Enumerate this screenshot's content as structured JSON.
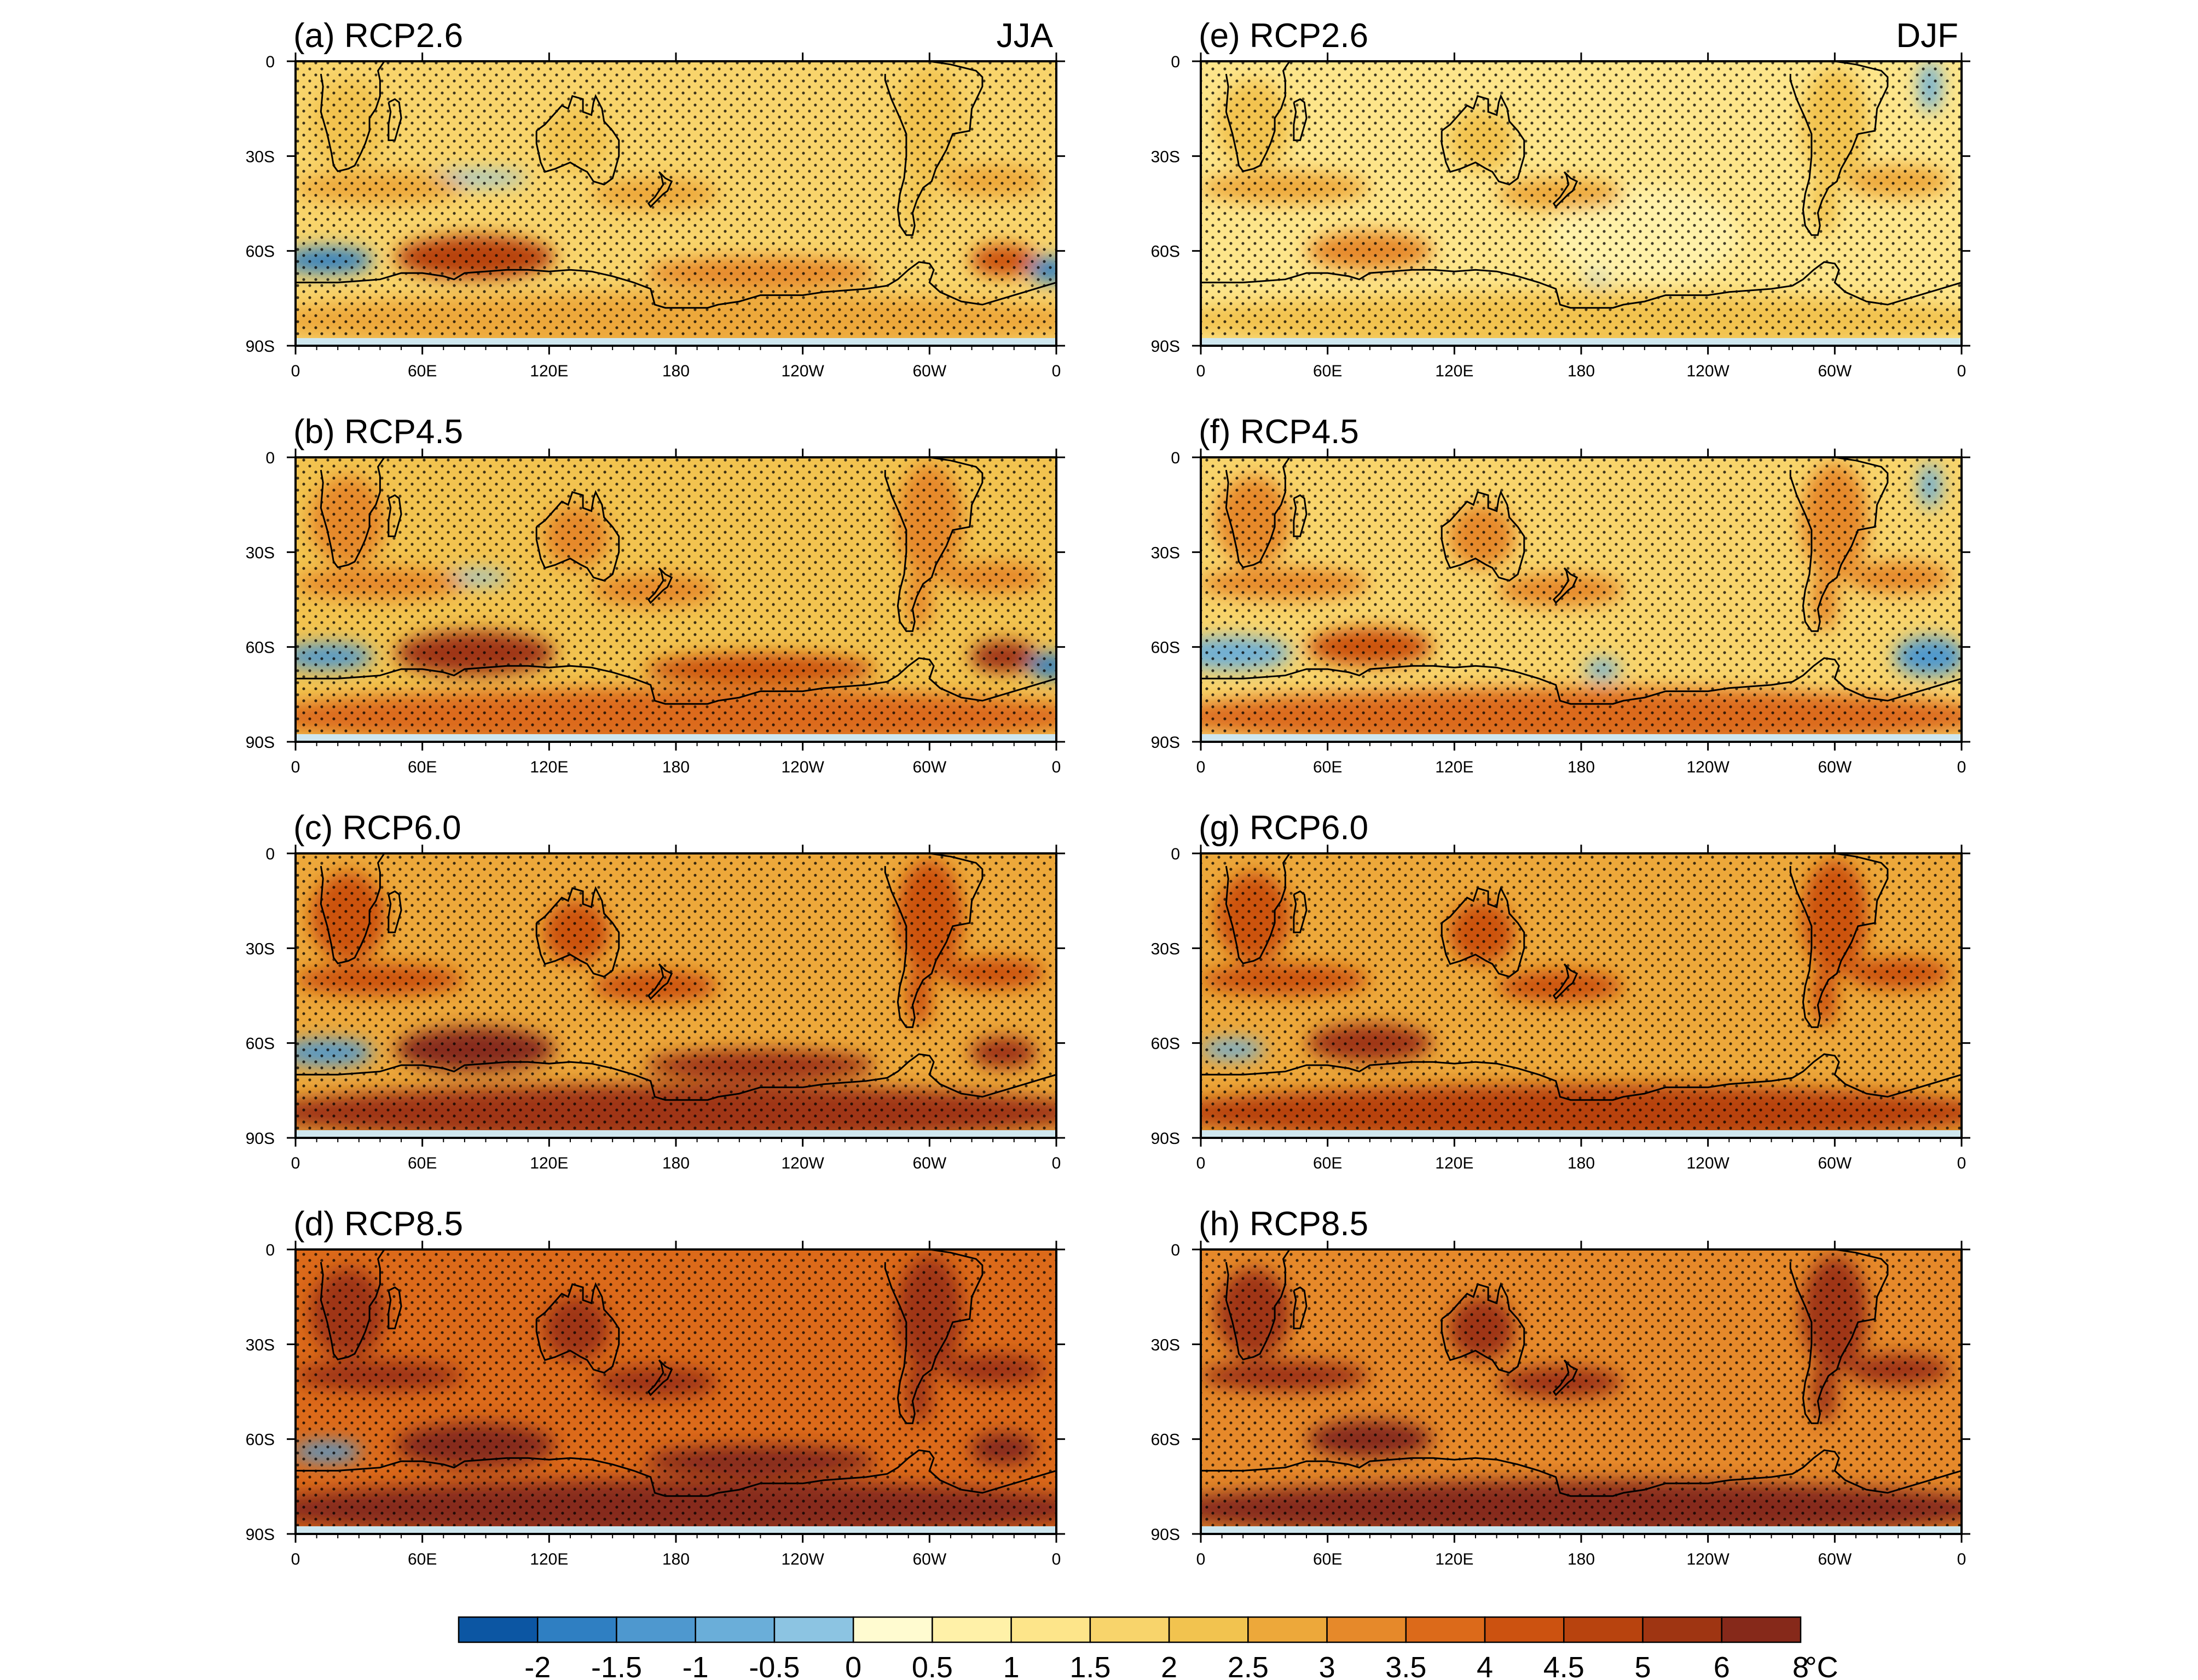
{
  "figure": {
    "panels": [
      {
        "id": "a",
        "title": "(a) RCP2.6",
        "season_label": "JJA",
        "scenario": "RCP2.6",
        "season": "JJA"
      },
      {
        "id": "b",
        "title": "(b) RCP4.5",
        "season_label": "",
        "scenario": "RCP4.5",
        "season": "JJA"
      },
      {
        "id": "c",
        "title": "(c) RCP6.0",
        "season_label": "",
        "scenario": "RCP6.0",
        "season": "JJA"
      },
      {
        "id": "d",
        "title": "(d) RCP8.5",
        "season_label": "",
        "scenario": "RCP8.5",
        "season": "JJA"
      },
      {
        "id": "e",
        "title": "(e) RCP2.6",
        "season_label": "DJF",
        "scenario": "RCP2.6",
        "season": "DJF"
      },
      {
        "id": "f",
        "title": "(f) RCP4.5",
        "season_label": "",
        "scenario": "RCP4.5",
        "season": "DJF"
      },
      {
        "id": "g",
        "title": "(g) RCP6.0",
        "season_label": "",
        "scenario": "RCP6.0",
        "season": "DJF"
      },
      {
        "id": "h",
        "title": "(h) RCP8.5",
        "season_label": "",
        "scenario": "RCP8.5",
        "season": "DJF"
      }
    ],
    "lon_ticks": [
      "0",
      "60E",
      "120E",
      "180",
      "120W",
      "60W",
      "0"
    ],
    "lat_ticks": [
      "0",
      "30S",
      "60S",
      "90S"
    ],
    "map_extent": {
      "lon": [
        0,
        360
      ],
      "lat": [
        -90,
        0
      ]
    },
    "colorbar": {
      "labels": [
        "-2",
        "-1.5",
        "-1",
        "-0.5",
        "0",
        "0.5",
        "1",
        "1.5",
        "2",
        "2.5",
        "3",
        "3.5",
        "4",
        "4.5",
        "5",
        "6",
        "8"
      ],
      "unit": "°C",
      "colors": [
        "#0c56a3",
        "#2f7fc2",
        "#4e98cf",
        "#6aaed9",
        "#8cc4e2",
        "#fffbd0",
        "#fff1a8",
        "#fde58a",
        "#f8d46b",
        "#f2c34f",
        "#eda83a",
        "#e6892a",
        "#dc6a1a",
        "#cc5210",
        "#b8430e",
        "#9f3512",
        "#86291a"
      ]
    },
    "colors": {
      "ocean_base": "#f4cf6c",
      "stipple": "#000000",
      "coast": "#000000",
      "lat_edge": "#cfe7ef"
    }
  }
}
